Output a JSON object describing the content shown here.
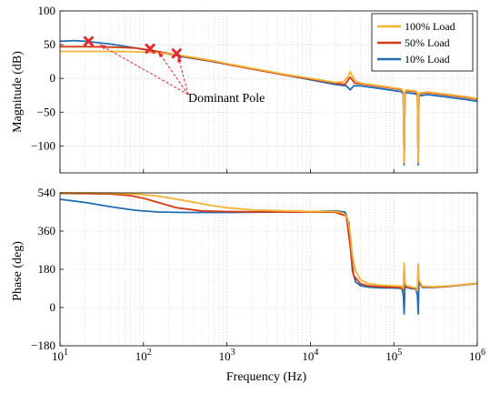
{
  "chart_data": [
    {
      "type": "line",
      "id": "magnitude",
      "xscale": "log",
      "xlim": [
        10,
        1000000
      ],
      "ylim": [
        -140,
        100
      ],
      "yticks": [
        100,
        50,
        0,
        -50,
        -100
      ],
      "ylabel": "Magnitude  (dB)",
      "xlabel": "",
      "grid": true,
      "legend": {
        "placement": "top-right",
        "entries": [
          "100% Load",
          "50% Load",
          "10% Load"
        ]
      },
      "series": [
        {
          "name": "100% Load",
          "color": "#f5b335",
          "x": [
            10,
            20,
            40,
            80,
            150,
            250,
            400,
            700,
            1000,
            2000,
            5000,
            10000,
            20000,
            25000,
            28000,
            30000,
            32000,
            35000,
            40000,
            60000,
            100000,
            125000,
            130000,
            133000,
            136000,
            140000,
            160000,
            185000,
            192000,
            196000,
            200000,
            250000,
            400000,
            700000,
            1000000
          ],
          "y": [
            40,
            40,
            40,
            39.5,
            38,
            35,
            31,
            26,
            22,
            15,
            6,
            0,
            -6,
            -5,
            2,
            10,
            3,
            -4,
            -7,
            -10,
            -14,
            -16,
            -20,
            -125,
            -20,
            -17,
            -18,
            -19,
            -22,
            -125,
            -22,
            -20,
            -23,
            -27,
            -30
          ]
        },
        {
          "name": "50% Load",
          "color": "#d83b14",
          "x": [
            10,
            20,
            40,
            80,
            120,
            200,
            400,
            700,
            1000,
            2000,
            5000,
            10000,
            20000,
            26000,
            30000,
            34000,
            40000,
            60000,
            100000,
            125000,
            130000,
            133000,
            136000,
            140000,
            160000,
            185000,
            192000,
            196000,
            200000,
            250000,
            400000,
            700000,
            1000000
          ],
          "y": [
            47,
            47,
            46.5,
            45,
            42,
            37,
            30,
            25,
            21,
            14,
            5,
            -1,
            -7,
            -9,
            2,
            -7,
            -8,
            -11,
            -15,
            -17,
            -21,
            -125,
            -21,
            -18,
            -19,
            -20,
            -23,
            -125,
            -23,
            -21,
            -24,
            -28,
            -31
          ]
        },
        {
          "name": "10% Load",
          "color": "#1f6db5",
          "x": [
            10,
            15,
            20,
            40,
            80,
            150,
            300,
            600,
            1000,
            2000,
            5000,
            10000,
            20000,
            27000,
            30000,
            33000,
            40000,
            60000,
            100000,
            125000,
            130000,
            133000,
            136000,
            140000,
            160000,
            185000,
            192000,
            196000,
            200000,
            250000,
            400000,
            700000,
            1000000
          ],
          "y": [
            55,
            56,
            55,
            51,
            45,
            39,
            32,
            26,
            21,
            14,
            5,
            -2,
            -9,
            -11,
            -17,
            -11,
            -11,
            -14,
            -18,
            -20,
            -24,
            -128,
            -24,
            -21,
            -22,
            -23,
            -26,
            -128,
            -26,
            -24,
            -27,
            -31,
            -34
          ]
        }
      ],
      "markers": {
        "symbol": "x",
        "color": "#e8242c",
        "x": [
          22,
          120,
          250
        ],
        "y": [
          55,
          44,
          37
        ]
      },
      "annotation": {
        "text": "Dominant Pole",
        "arrow_targets_x": [
          30,
          150,
          260
        ],
        "arrow_targets_y": [
          50,
          40,
          33
        ]
      }
    },
    {
      "type": "line",
      "id": "phase",
      "xscale": "log",
      "xlim": [
        10,
        1000000
      ],
      "ylim": [
        -180,
        540
      ],
      "yticks": [
        540,
        360,
        180,
        0,
        -180
      ],
      "xticks": [
        "10^1",
        "10^2",
        "10^3",
        "10^4",
        "10^5",
        "10^6"
      ],
      "ylabel": "Phase  (deg)",
      "xlabel": "Frequency  (Hz)",
      "grid": true,
      "series": [
        {
          "name": "100% Load",
          "color": "#f5b335",
          "x": [
            10,
            20,
            40,
            80,
            150,
            300,
            600,
            1000,
            2000,
            5000,
            10000,
            20000,
            25000,
            28000,
            30000,
            32000,
            35000,
            40000,
            50000,
            70000,
            100000,
            125000,
            130000,
            133000,
            136000,
            140000,
            150000,
            170000,
            185000,
            192000,
            196000,
            200000,
            220000,
            300000,
            500000,
            1000000
          ],
          "y": [
            540,
            540,
            539,
            535,
            525,
            505,
            483,
            470,
            460,
            455,
            453,
            452,
            445,
            420,
            350,
            240,
            170,
            130,
            112,
            105,
            103,
            100,
            90,
            210,
            120,
            105,
            100,
            95,
            92,
            80,
            205,
            130,
            100,
            98,
            103,
            115
          ]
        },
        {
          "name": "50% Load",
          "color": "#d83b14",
          "x": [
            10,
            20,
            40,
            70,
            100,
            150,
            250,
            500,
            1000,
            2000,
            5000,
            10000,
            20000,
            27000,
            30000,
            33000,
            40000,
            50000,
            70000,
            100000,
            125000,
            130000,
            133000,
            136000,
            140000,
            150000,
            170000,
            185000,
            192000,
            196000,
            200000,
            220000,
            300000,
            500000,
            1000000
          ],
          "y": [
            538,
            537,
            535,
            527,
            515,
            495,
            470,
            455,
            452,
            451,
            450,
            450,
            449,
            430,
            290,
            150,
            112,
            102,
            98,
            96,
            94,
            82,
            195,
            115,
            100,
            96,
            92,
            89,
            78,
            195,
            125,
            98,
            96,
            102,
            114
          ]
        },
        {
          "name": "10% Load",
          "color": "#1f6db5",
          "x": [
            10,
            20,
            40,
            80,
            150,
            300,
            600,
            1000,
            2000,
            5000,
            10000,
            20000,
            26000,
            29000,
            30000,
            32000,
            35000,
            40000,
            50000,
            70000,
            100000,
            125000,
            130000,
            133000,
            136000,
            140000,
            150000,
            170000,
            185000,
            192000,
            196000,
            200000,
            220000,
            300000,
            500000,
            1000000
          ],
          "y": [
            510,
            495,
            475,
            458,
            450,
            448,
            448,
            448,
            449,
            450,
            452,
            455,
            450,
            400,
            300,
            170,
            120,
            103,
            96,
            93,
            92,
            90,
            60,
            -30,
            110,
            96,
            92,
            89,
            87,
            55,
            -30,
            120,
            95,
            95,
            101,
            113
          ]
        }
      ]
    }
  ]
}
